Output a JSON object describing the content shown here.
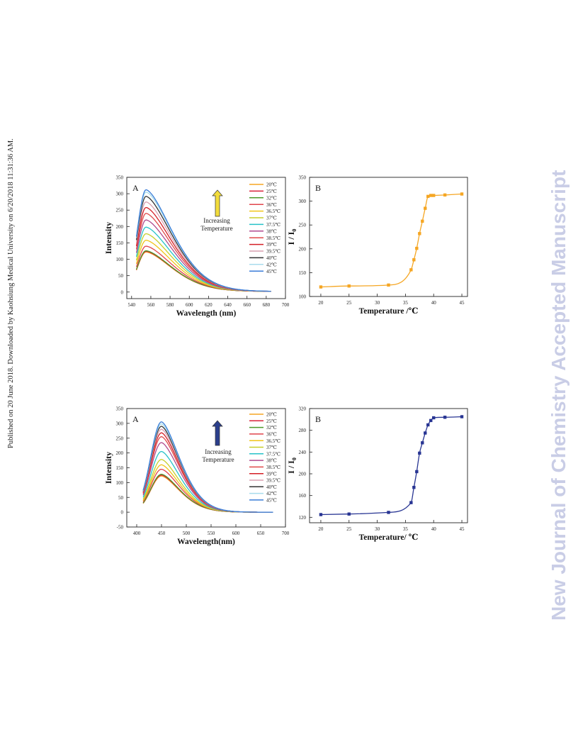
{
  "side_notice": "Published on 20 June 2018. Downloaded by Kaohsiung Medical University on 6/20/2018 11:31:36 AM.",
  "watermark": "New Journal of Chemistry Accepted Manuscript",
  "colors": {
    "watermark": "#c9cde6",
    "panel_b_top": "#f5a623",
    "panel_b_bottom": "#283593",
    "arrow_top": "#f2dc3c",
    "arrow_bottom": "#2b3f8c",
    "temps": [
      "#f5a623",
      "#d9233b",
      "#4e9a2a",
      "#e0454b",
      "#f0c419",
      "#c8cf2b",
      "#27c2c9",
      "#b04a8e",
      "#e04a4a",
      "#d41f26",
      "#d9a0b0",
      "#333333",
      "#a8dcec",
      "#3b7dd8"
    ]
  },
  "chart_data": [
    {
      "id": "top-A",
      "type": "line",
      "label": "A",
      "xlabel": "Wavelength (nm)",
      "ylabel": "Intensity",
      "xlim": [
        535,
        700
      ],
      "ylim": [
        -20,
        350
      ],
      "xticks": [
        540,
        560,
        580,
        600,
        620,
        640,
        660,
        680,
        700
      ],
      "yticks": [
        0,
        50,
        100,
        150,
        200,
        250,
        300,
        350
      ],
      "annotation": [
        "Increasing",
        "Temperature"
      ],
      "curve": {
        "x_start": 545,
        "x_end": 685,
        "peak_x": 555,
        "sigma_left": 9,
        "tail_decay": 28,
        "baseline": 2
      },
      "legend": [
        "20℃",
        "25℃",
        "32℃",
        "36℃",
        "36.5℃",
        "37℃",
        "37.5℃",
        "38℃",
        "38.5℃",
        "39℃",
        "39.5℃",
        "40℃",
        "42℃",
        "45℃"
      ],
      "peaks": [
        122,
        124,
        126,
        140,
        158,
        178,
        198,
        220,
        240,
        258,
        275,
        292,
        305,
        312
      ]
    },
    {
      "id": "top-B",
      "type": "scatter",
      "label": "B",
      "xlabel": "Temperature /℃",
      "ylabel": "I / I",
      "ylabel_sub": "0",
      "xlim": [
        18,
        46
      ],
      "ylim": [
        100,
        350
      ],
      "xticks": [
        20,
        25,
        30,
        35,
        40,
        45
      ],
      "yticks": [
        100,
        150,
        200,
        250,
        300,
        350
      ],
      "x": [
        20,
        25,
        32,
        36,
        36.5,
        37,
        37.5,
        38,
        38.5,
        39,
        39.5,
        40,
        42,
        45
      ],
      "y": [
        120,
        122,
        124,
        156,
        177,
        201,
        232,
        258,
        285,
        310,
        312,
        312,
        313,
        315
      ]
    },
    {
      "id": "bottom-A",
      "type": "line",
      "label": "A",
      "xlabel": "Wavelength(nm)",
      "ylabel": "Intensity",
      "xlim": [
        380,
        700
      ],
      "ylim": [
        -50,
        350
      ],
      "xticks": [
        400,
        450,
        500,
        550,
        600,
        650,
        700
      ],
      "yticks": [
        -50,
        0,
        50,
        100,
        150,
        200,
        250,
        300,
        350
      ],
      "annotation": [
        "Increasing",
        "Temperature"
      ],
      "curve": {
        "x_start": 413,
        "x_end": 675,
        "peak_x": 450,
        "sigma_left": 22,
        "tail_decay": 38,
        "baseline": 0
      },
      "legend": [
        "20℃",
        "25℃",
        "32℃",
        "36℃",
        "36.5℃",
        "37℃",
        "37.5℃",
        "38℃",
        "38.5℃",
        "39℃",
        "39.5℃",
        "40℃",
        "42℃",
        "45℃"
      ],
      "peaks": [
        122,
        125,
        128,
        145,
        160,
        178,
        205,
        235,
        255,
        268,
        280,
        290,
        298,
        305
      ]
    },
    {
      "id": "bottom-B",
      "type": "scatter",
      "label": "B",
      "xlabel": "Temperature/ ℃",
      "ylabel": "I / I",
      "ylabel_sub": "0",
      "xlim": [
        18,
        46
      ],
      "ylim": [
        110,
        320
      ],
      "xticks": [
        20,
        25,
        30,
        35,
        40,
        45
      ],
      "yticks": [
        120,
        160,
        200,
        240,
        280,
        320
      ],
      "x": [
        20,
        25,
        32,
        36,
        36.5,
        37,
        37.5,
        38,
        38.5,
        39,
        39.5,
        40,
        42,
        45
      ],
      "y": [
        125,
        126,
        129,
        147,
        175,
        204,
        238,
        257,
        275,
        290,
        298,
        303,
        304,
        305
      ]
    }
  ]
}
